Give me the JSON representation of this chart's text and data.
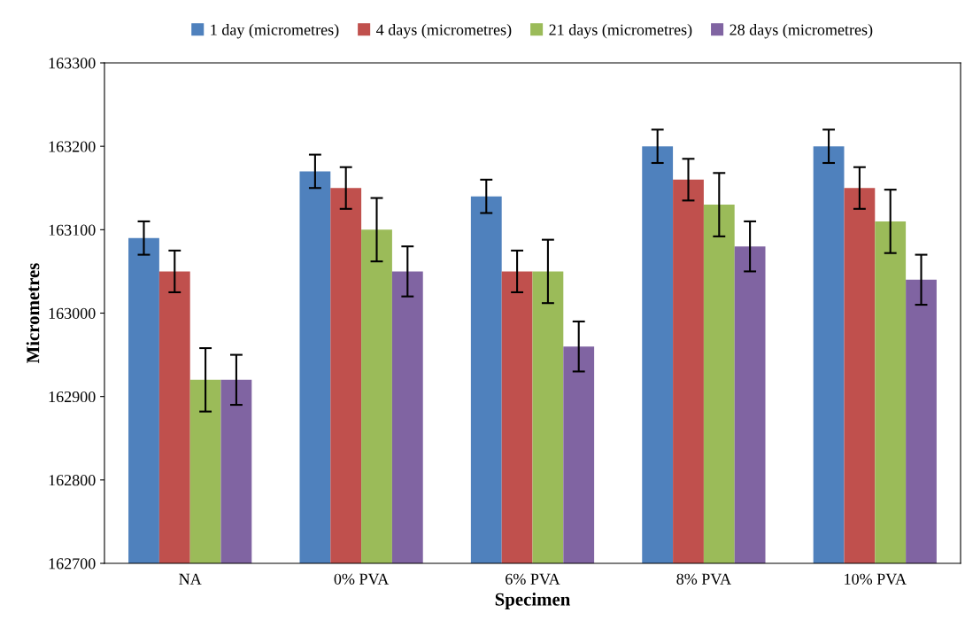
{
  "chart_data": {
    "type": "bar",
    "xlabel": "Specimen",
    "ylabel": "Micrometres",
    "categories": [
      "NA",
      "0% PVA",
      "6% PVA",
      "8% PVA",
      "10% PVA"
    ],
    "series": [
      {
        "name": "1 day (micrometres)",
        "color": "#4f81bd",
        "values": [
          163090,
          163170,
          163140,
          163200,
          163200
        ],
        "errors": [
          20,
          20,
          20,
          20,
          20
        ]
      },
      {
        "name": "4 days (micrometres)",
        "color": "#c0504d",
        "values": [
          163050,
          163150,
          163050,
          163160,
          163150
        ],
        "errors": [
          25,
          25,
          25,
          25,
          25
        ]
      },
      {
        "name": "21 days (micrometres)",
        "color": "#9bbb59",
        "values": [
          162920,
          163100,
          163050,
          163130,
          163110
        ],
        "errors": [
          38,
          38,
          38,
          38,
          38
        ]
      },
      {
        "name": "28 days (micrometres)",
        "color": "#8064a2",
        "values": [
          162920,
          163050,
          162960,
          163080,
          163040
        ],
        "errors": [
          30,
          30,
          30,
          30,
          30
        ]
      }
    ],
    "ylim": [
      162700,
      163300
    ],
    "yticks": [
      162700,
      162800,
      162900,
      163000,
      163100,
      163200,
      163300
    ],
    "grid": false,
    "legend": "top"
  }
}
